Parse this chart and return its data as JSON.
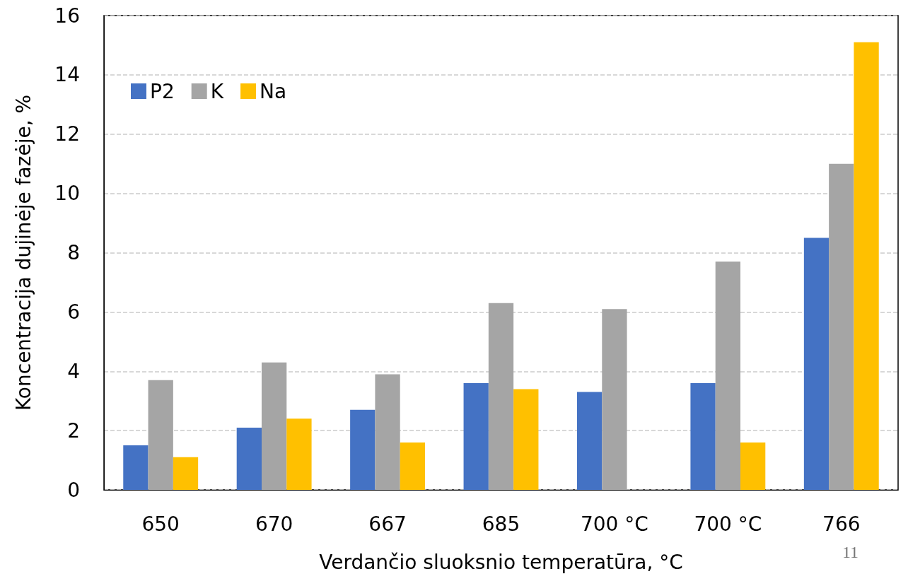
{
  "chart_data": {
    "type": "bar",
    "xlabel": "Verdančio sluoksnio temperatūra, °C",
    "ylabel": "Koncentracija dujinėje fazėje, %",
    "categories": [
      "650",
      "670",
      "667",
      "685",
      "700 °C",
      "700 °C",
      "766"
    ],
    "series": [
      {
        "name": "P2",
        "color": "#4472c4",
        "values": [
          1.5,
          2.1,
          2.7,
          3.6,
          3.3,
          3.6,
          8.5
        ]
      },
      {
        "name": "K",
        "color": "#a5a5a5",
        "values": [
          3.7,
          4.3,
          3.9,
          6.3,
          6.1,
          7.7,
          11.0
        ]
      },
      {
        "name": "Na",
        "color": "#ffc000",
        "values": [
          1.1,
          2.4,
          1.6,
          3.4,
          null,
          1.6,
          15.1
        ]
      }
    ],
    "ylim": [
      0,
      16
    ],
    "yticks": [
      0,
      2,
      4,
      6,
      8,
      10,
      12,
      14,
      16
    ],
    "grid": "y",
    "legend": "top left",
    "annotations": [
      "11"
    ]
  }
}
